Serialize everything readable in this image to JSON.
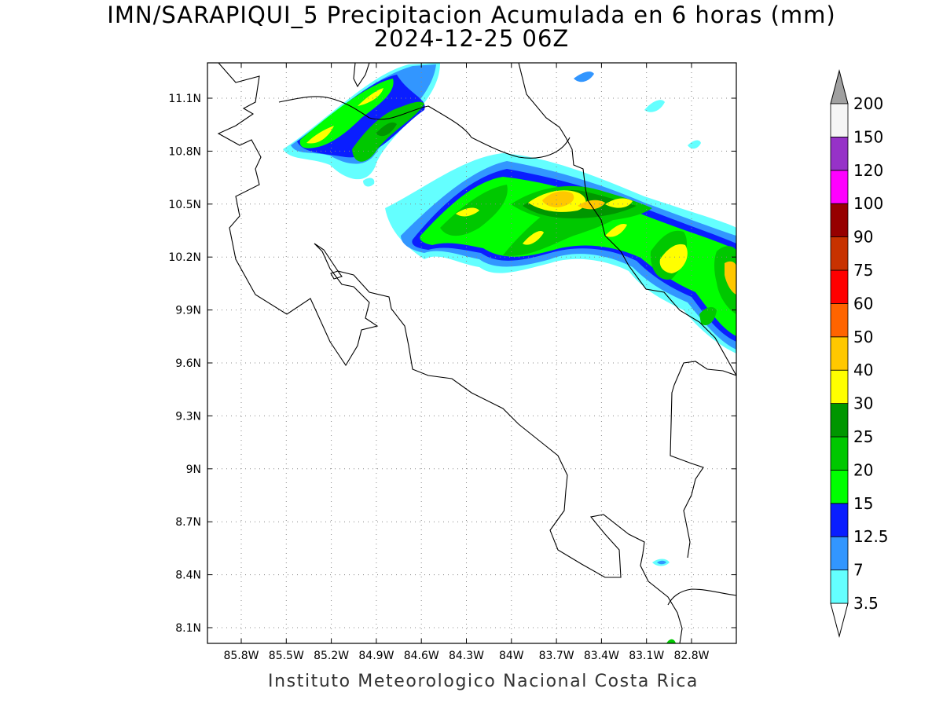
{
  "title_line1": "IMN/SARAPIQUI_5 Precipitacion Acumulada en 6 horas (mm)",
  "title_line2": "2024-12-25 06Z",
  "footer": "Instituto Meteorologico Nacional Costa Rica",
  "map": {
    "lon_ticks": [
      "85.8W",
      "85.5W",
      "85.2W",
      "84.9W",
      "84.6W",
      "84.3W",
      "84W",
      "83.7W",
      "83.4W",
      "83.1W",
      "82.8W"
    ],
    "lat_ticks": [
      "11.1N",
      "10.8N",
      "10.5N",
      "10.2N",
      "9.9N",
      "9.6N",
      "9.3N",
      "9N",
      "8.7N",
      "8.4N",
      "8.1N"
    ],
    "grid": true
  },
  "colorbar": {
    "units": "mm",
    "levels": [
      {
        "value": "3.5",
        "color": "#64ffff"
      },
      {
        "value": "7",
        "color": "#3296ff"
      },
      {
        "value": "12.5",
        "color": "#0a1eff"
      },
      {
        "value": "15",
        "color": "#00ff00"
      },
      {
        "value": "20",
        "color": "#00c800"
      },
      {
        "value": "25",
        "color": "#009600"
      },
      {
        "value": "30",
        "color": "#ffff00"
      },
      {
        "value": "40",
        "color": "#ffc800"
      },
      {
        "value": "50",
        "color": "#ff6400"
      },
      {
        "value": "60",
        "color": "#ff0000"
      },
      {
        "value": "75",
        "color": "#c83200"
      },
      {
        "value": "90",
        "color": "#960000"
      },
      {
        "value": "100",
        "color": "#ff00ff"
      },
      {
        "value": "120",
        "color": "#ff00ff"
      },
      {
        "value": "150",
        "color": "#9632c8"
      },
      {
        "value": "200",
        "color": "#f5f5f5"
      }
    ],
    "bins": [
      "#64ffff",
      "#3296ff",
      "#0a1eff",
      "#00ff00",
      "#00c800",
      "#009600",
      "#ffff00",
      "#ffc800",
      "#ff6400",
      "#ff0000",
      "#c83200",
      "#960000",
      "#ff00ff",
      "#9632c8",
      "#f5f5f5"
    ],
    "over_color": "#a0a0a0",
    "under_color": "#ffffff"
  }
}
